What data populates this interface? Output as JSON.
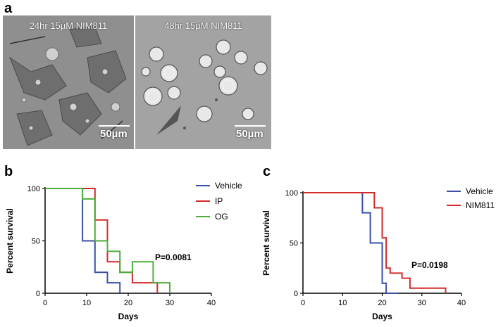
{
  "figure": {
    "panel_a": {
      "letter": "a",
      "images": [
        {
          "caption": "24hr 15µM NIM811",
          "scale_label": "50µm"
        },
        {
          "caption": "48hr 15µM NIM811",
          "scale_label": "50µm"
        }
      ]
    },
    "panel_b": {
      "letter": "b"
    },
    "panel_c": {
      "letter": "c"
    }
  },
  "chart_data": [
    {
      "type": "line",
      "step": true,
      "panel": "b",
      "xlabel": "Days",
      "ylabel": "Percent survival",
      "xlim": [
        0,
        40
      ],
      "ylim": [
        0,
        100
      ],
      "xticks": [
        0,
        10,
        20,
        30,
        40
      ],
      "yticks": [
        0,
        50,
        100
      ],
      "annotation": "P=0.0081",
      "legend": "top-right",
      "series": [
        {
          "name": "Vehicle",
          "color": "#3b4fa8",
          "points": [
            [
              0,
              100
            ],
            [
              9,
              100
            ],
            [
              9,
              50
            ],
            [
              12,
              50
            ],
            [
              12,
              20
            ],
            [
              15,
              20
            ],
            [
              15,
              10
            ],
            [
              18,
              10
            ],
            [
              18,
              0
            ]
          ]
        },
        {
          "name": "IP",
          "color": "#d42a2a",
          "points": [
            [
              0,
              100
            ],
            [
              12,
              100
            ],
            [
              12,
              70
            ],
            [
              15,
              70
            ],
            [
              15,
              30
            ],
            [
              18,
              30
            ],
            [
              18,
              20
            ],
            [
              21,
              20
            ],
            [
              21,
              10
            ],
            [
              27,
              10
            ],
            [
              27,
              0
            ]
          ]
        },
        {
          "name": "OG",
          "color": "#4cae3a",
          "points": [
            [
              0,
              100
            ],
            [
              9,
              100
            ],
            [
              9,
              90
            ],
            [
              12,
              90
            ],
            [
              12,
              50
            ],
            [
              15,
              50
            ],
            [
              15,
              40
            ],
            [
              18,
              40
            ],
            [
              18,
              20
            ],
            [
              21,
              20
            ],
            [
              21,
              30
            ],
            [
              26,
              30
            ],
            [
              26,
              10
            ],
            [
              30,
              10
            ],
            [
              30,
              0
            ]
          ]
        }
      ]
    },
    {
      "type": "line",
      "step": true,
      "panel": "c",
      "xlabel": "Days",
      "ylabel": "Percent survival",
      "xlim": [
        0,
        40
      ],
      "ylim": [
        0,
        100
      ],
      "xticks": [
        0,
        10,
        20,
        30,
        40
      ],
      "yticks": [
        0,
        50,
        100
      ],
      "annotation": "P=0.0198",
      "legend": "top-right",
      "series": [
        {
          "name": "Vehicle",
          "color": "#3b4fa8",
          "points": [
            [
              0,
              100
            ],
            [
              15,
              100
            ],
            [
              15,
              80
            ],
            [
              17,
              80
            ],
            [
              17,
              50
            ],
            [
              20,
              50
            ],
            [
              20,
              10
            ],
            [
              21,
              10
            ],
            [
              21,
              0
            ],
            [
              24,
              0
            ]
          ]
        },
        {
          "name": "NIM811",
          "color": "#d42a2a",
          "points": [
            [
              0,
              100
            ],
            [
              18,
              100
            ],
            [
              18,
              85
            ],
            [
              20,
              85
            ],
            [
              20,
              55
            ],
            [
              21,
              55
            ],
            [
              21,
              25
            ],
            [
              22,
              25
            ],
            [
              22,
              20
            ],
            [
              25,
              20
            ],
            [
              25,
              15
            ],
            [
              27,
              15
            ],
            [
              27,
              5
            ],
            [
              36,
              5
            ],
            [
              36,
              0
            ]
          ]
        }
      ]
    }
  ]
}
